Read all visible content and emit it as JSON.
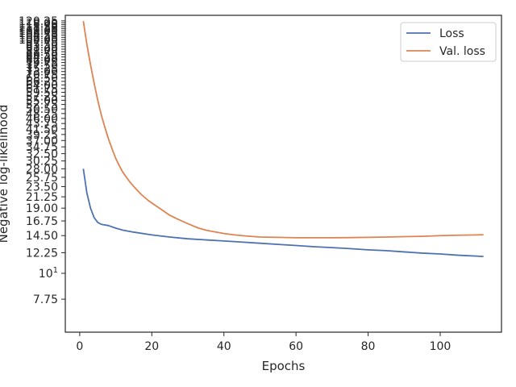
{
  "chart_data": {
    "type": "line",
    "title": "",
    "xlabel": "Epochs",
    "ylabel": "Negative log-likelihood",
    "xlim": [
      -4,
      117
    ],
    "ylim": [
      5.6,
      127
    ],
    "yscale": "log",
    "grid": false,
    "legend_position": "top-right",
    "xticks": [
      0,
      20,
      40,
      60,
      80,
      100
    ],
    "xtick_labels": [
      "0",
      "20",
      "40",
      "60",
      "80",
      "100"
    ],
    "yticks": [
      7.75,
      10,
      12.25,
      14.5,
      16.75,
      19.0,
      21.25,
      23.5,
      25.75,
      28.0,
      30.25,
      32.5,
      34.75,
      37.0,
      39.25,
      41.5,
      43.75,
      46.0,
      48.25,
      50.5,
      52.75,
      55.0,
      57.25,
      59.5,
      61.75,
      64.0,
      66.25,
      68.5,
      70.75,
      73.0,
      75.25,
      77.5,
      79.75,
      82.0,
      84.25,
      86.5,
      88.75,
      91.0,
      93.25,
      95.5,
      97.75,
      100.0,
      102.25,
      104.5,
      106.75,
      109.0,
      111.25,
      113.5,
      115.75,
      118.0,
      120.25
    ],
    "ytick_labels": [
      "7.75",
      "10^1",
      "12.25",
      "14.50",
      "16.75",
      "19.00",
      "21.25",
      "23.50",
      "25.75",
      "28.00",
      "30.25",
      "32.50",
      "34.75",
      "37.00",
      "39.25",
      "41.50",
      "43.75",
      "46.00",
      "48.25",
      "50.50",
      "52.75",
      "55.00",
      "57.25",
      "59.50",
      "61.75",
      "64.00",
      "66.25",
      "68.50",
      "70.75",
      "73.00",
      "75.25",
      "77.50",
      "79.75",
      "82.00",
      "84.25",
      "86.50",
      "88.75",
      "91.00",
      "93.25",
      "95.50",
      "97.75",
      "100.00",
      "102.25",
      "104.50",
      "106.75",
      "109.00",
      "111.25",
      "113.50",
      "115.75",
      "118.00",
      "120.25"
    ],
    "series": [
      {
        "name": "Loss",
        "color": "#4c72b0",
        "points": [
          [
            1,
            28.0
          ],
          [
            2,
            22.0
          ],
          [
            3,
            19.0
          ],
          [
            4,
            17.3
          ],
          [
            5,
            16.5
          ],
          [
            6,
            16.2
          ],
          [
            8,
            16.0
          ],
          [
            10,
            15.6
          ],
          [
            12,
            15.3
          ],
          [
            15,
            15.0
          ],
          [
            20,
            14.6
          ],
          [
            25,
            14.3
          ],
          [
            30,
            14.05
          ],
          [
            35,
            13.9
          ],
          [
            40,
            13.75
          ],
          [
            45,
            13.6
          ],
          [
            50,
            13.45
          ],
          [
            55,
            13.3
          ],
          [
            60,
            13.15
          ],
          [
            65,
            13.0
          ],
          [
            70,
            12.88
          ],
          [
            75,
            12.75
          ],
          [
            80,
            12.6
          ],
          [
            85,
            12.5
          ],
          [
            90,
            12.35
          ],
          [
            95,
            12.2
          ],
          [
            100,
            12.1
          ],
          [
            105,
            11.95
          ],
          [
            110,
            11.85
          ],
          [
            112,
            11.8
          ]
        ]
      },
      {
        "name": "Val. loss",
        "color": "#dd8452",
        "points": [
          [
            1,
            120.0
          ],
          [
            2,
            95.0
          ],
          [
            3,
            78.0
          ],
          [
            4,
            65.0
          ],
          [
            5,
            55.0
          ],
          [
            6,
            47.5
          ],
          [
            7,
            42.0
          ],
          [
            8,
            37.5
          ],
          [
            9,
            34.0
          ],
          [
            10,
            31.0
          ],
          [
            11,
            28.8
          ],
          [
            12,
            27.0
          ],
          [
            13,
            25.7
          ],
          [
            14,
            24.5
          ],
          [
            15,
            23.5
          ],
          [
            17,
            21.8
          ],
          [
            19,
            20.5
          ],
          [
            21,
            19.5
          ],
          [
            23,
            18.6
          ],
          [
            25,
            17.7
          ],
          [
            27,
            17.1
          ],
          [
            30,
            16.3
          ],
          [
            33,
            15.6
          ],
          [
            35,
            15.3
          ],
          [
            38,
            15.0
          ],
          [
            40,
            14.8
          ],
          [
            43,
            14.6
          ],
          [
            46,
            14.45
          ],
          [
            50,
            14.3
          ],
          [
            55,
            14.25
          ],
          [
            60,
            14.2
          ],
          [
            65,
            14.2
          ],
          [
            70,
            14.2
          ],
          [
            75,
            14.22
          ],
          [
            80,
            14.25
          ],
          [
            85,
            14.3
          ],
          [
            90,
            14.35
          ],
          [
            95,
            14.4
          ],
          [
            100,
            14.5
          ],
          [
            105,
            14.55
          ],
          [
            110,
            14.6
          ],
          [
            112,
            14.62
          ]
        ]
      }
    ]
  }
}
